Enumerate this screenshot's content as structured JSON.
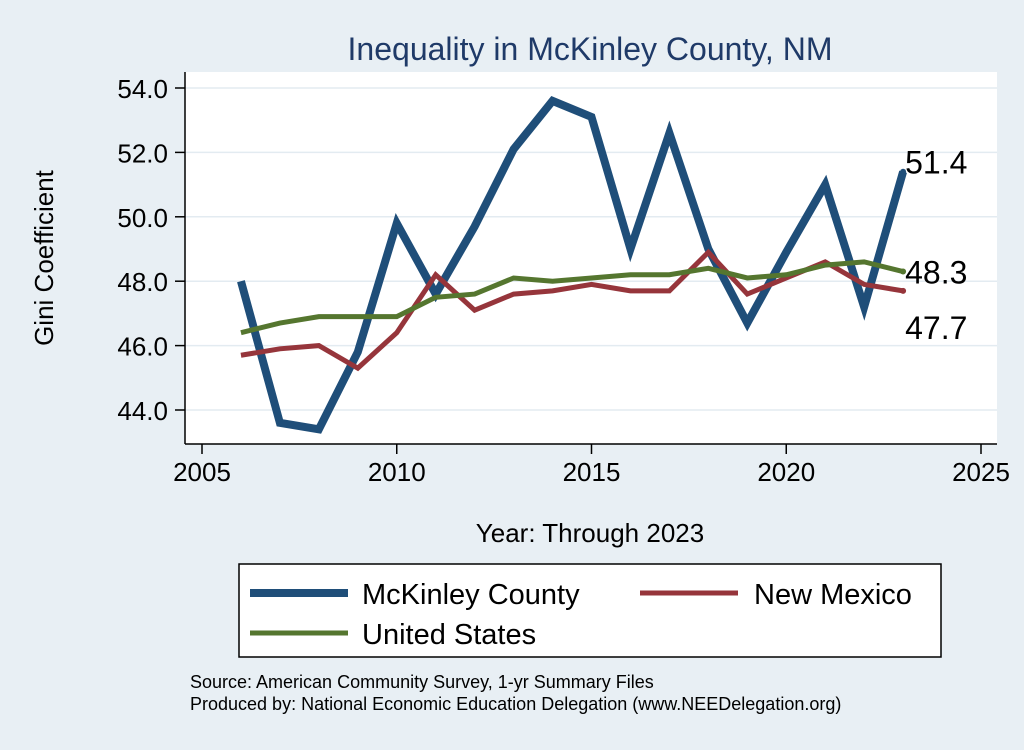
{
  "chart_data": {
    "type": "line",
    "title": "Inequality in McKinley County, NM",
    "xlabel": "Year: Through 2023",
    "ylabel": "Gini Coefficient",
    "xlim": [
      2005,
      2025
    ],
    "ylim": [
      43,
      54.5
    ],
    "xticks": [
      2005,
      2010,
      2015,
      2020,
      2025
    ],
    "yticks": [
      44.0,
      46.0,
      48.0,
      50.0,
      52.0,
      54.0
    ],
    "ytick_labels": [
      "44.0",
      "46.0",
      "48.0",
      "50.0",
      "52.0",
      "54.0"
    ],
    "grid": true,
    "legend_position": "bottom",
    "x": [
      2006,
      2007,
      2008,
      2009,
      2010,
      2011,
      2012,
      2013,
      2014,
      2015,
      2016,
      2017,
      2018,
      2019,
      2020,
      2021,
      2022,
      2023
    ],
    "series": [
      {
        "name": "McKinley County",
        "color": "#1f4e79",
        "values": [
          48.0,
          43.6,
          43.4,
          45.8,
          49.8,
          47.6,
          49.7,
          52.1,
          53.6,
          53.1,
          49.0,
          52.6,
          49.0,
          46.7,
          48.9,
          51.0,
          47.2,
          51.4
        ],
        "end_label": "51.4"
      },
      {
        "name": "New Mexico",
        "color": "#96353b",
        "values": [
          45.7,
          45.9,
          46.0,
          45.3,
          46.4,
          48.2,
          47.1,
          47.6,
          47.7,
          47.9,
          47.7,
          47.7,
          48.9,
          47.6,
          48.1,
          48.6,
          47.9,
          47.7
        ],
        "end_label": "47.7"
      },
      {
        "name": "United States",
        "color": "#55762f",
        "values": [
          46.4,
          46.7,
          46.9,
          46.9,
          46.9,
          47.5,
          47.6,
          48.1,
          48.0,
          48.1,
          48.2,
          48.2,
          48.4,
          48.1,
          48.2,
          48.5,
          48.6,
          48.3
        ],
        "end_label": "48.3"
      }
    ],
    "source_lines": [
      "Source: American Community Survey, 1-yr Summary Files",
      "Produced by: National Economic Education Delegation (www.NEEDelegation.org)"
    ]
  }
}
